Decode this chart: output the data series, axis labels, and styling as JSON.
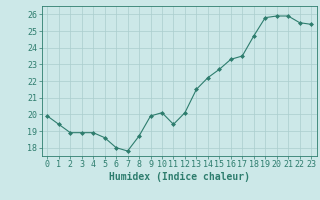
{
  "x": [
    0,
    1,
    2,
    3,
    4,
    5,
    6,
    7,
    8,
    9,
    10,
    11,
    12,
    13,
    14,
    15,
    16,
    17,
    18,
    19,
    20,
    21,
    22,
    23
  ],
  "y": [
    19.9,
    19.4,
    18.9,
    18.9,
    18.9,
    18.6,
    18.0,
    17.8,
    18.7,
    19.9,
    20.1,
    19.4,
    20.1,
    21.5,
    22.2,
    22.7,
    23.3,
    23.5,
    24.7,
    25.8,
    25.9,
    25.9,
    25.5,
    25.4
  ],
  "xlabel": "Humidex (Indice chaleur)",
  "ylim": [
    17.5,
    26.5
  ],
  "xlim": [
    -0.5,
    23.5
  ],
  "yticks": [
    18,
    19,
    20,
    21,
    22,
    23,
    24,
    25,
    26
  ],
  "xticks": [
    0,
    1,
    2,
    3,
    4,
    5,
    6,
    7,
    8,
    9,
    10,
    11,
    12,
    13,
    14,
    15,
    16,
    17,
    18,
    19,
    20,
    21,
    22,
    23
  ],
  "line_color": "#2e7d6e",
  "marker": "D",
  "marker_size": 2.0,
  "bg_color": "#cce8e8",
  "grid_color": "#aacece",
  "axis_color": "#2e7d6e",
  "tick_label_color": "#2e7d6e",
  "xlabel_color": "#2e7d6e",
  "xlabel_fontsize": 7,
  "tick_fontsize": 6
}
